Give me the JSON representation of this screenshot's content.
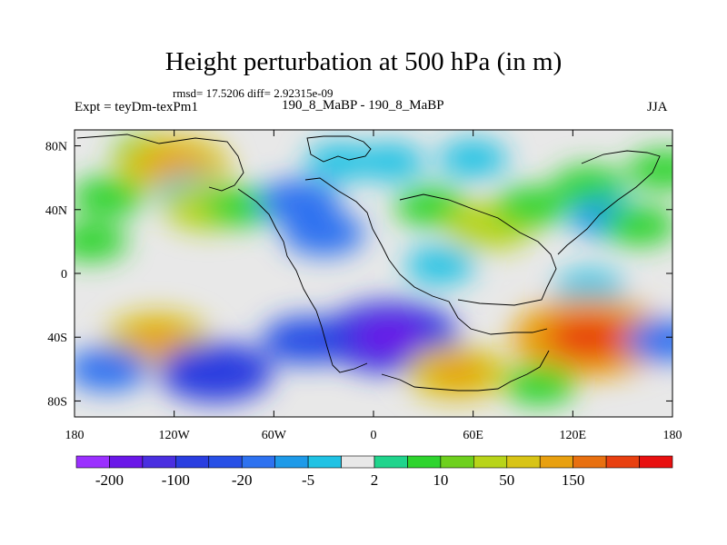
{
  "chart_data": {
    "type": "heatmap",
    "title": "Height perturbation at 500 hPa (in m)",
    "stats_text": "rmsd= 17.5206 diff= 2.92315e-09",
    "left_label": "Expt = teyDm-texPm1",
    "center_label": "190_8_MaBP - 190_8_MaBP",
    "right_label": "JJA",
    "x_ticks": [
      "180",
      "120W",
      "60W",
      "0",
      "60E",
      "120E",
      "180"
    ],
    "y_ticks": [
      "80N",
      "40N",
      "0",
      "40S",
      "80S"
    ],
    "xlim": [
      -180,
      180
    ],
    "ylim": [
      -90,
      90
    ],
    "colorbar": {
      "colors": [
        "#9b30ff",
        "#6a17e8",
        "#4a2fe0",
        "#2a3ee0",
        "#2850e6",
        "#2e72f0",
        "#1e9ae8",
        "#20c2e4",
        "#e8e8e8",
        "#20d48c",
        "#2ed42e",
        "#6ed01e",
        "#b8d41a",
        "#d8c416",
        "#e8a010",
        "#e87010",
        "#e84010",
        "#e81010"
      ],
      "labels": [
        "-200",
        "-100",
        "-20",
        "-5",
        "2",
        "10",
        "50",
        "150"
      ]
    },
    "anomalies": [
      {
        "lon": -135,
        "lat": 75,
        "value": 10
      },
      {
        "lon": -120,
        "lat": 68,
        "value": 55
      },
      {
        "lon": -160,
        "lat": 48,
        "value": 10
      },
      {
        "lon": -110,
        "lat": 50,
        "value": -5
      },
      {
        "lon": -100,
        "lat": 42,
        "value": 30
      },
      {
        "lon": -170,
        "lat": 20,
        "value": 8
      },
      {
        "lon": -80,
        "lat": 42,
        "value": 10
      },
      {
        "lon": -30,
        "lat": 25,
        "value": -20
      },
      {
        "lon": -45,
        "lat": 45,
        "value": -20
      },
      {
        "lon": -20,
        "lat": 70,
        "value": -5
      },
      {
        "lon": 10,
        "lat": 70,
        "value": -5
      },
      {
        "lon": 60,
        "lat": 72,
        "value": -5
      },
      {
        "lon": 35,
        "lat": 42,
        "value": 10
      },
      {
        "lon": 70,
        "lat": 30,
        "value": 30
      },
      {
        "lon": 95,
        "lat": 42,
        "value": 10
      },
      {
        "lon": 130,
        "lat": 55,
        "value": 10
      },
      {
        "lon": 175,
        "lat": 65,
        "value": 10
      },
      {
        "lon": 140,
        "lat": 35,
        "value": -10
      },
      {
        "lon": 160,
        "lat": 30,
        "value": 10
      },
      {
        "lon": 40,
        "lat": 5,
        "value": -5
      },
      {
        "lon": 130,
        "lat": -10,
        "value": -5
      },
      {
        "lon": -130,
        "lat": -42,
        "value": 50
      },
      {
        "lon": -40,
        "lat": -42,
        "value": -30
      },
      {
        "lon": 10,
        "lat": -40,
        "value": -90
      },
      {
        "lon": -95,
        "lat": -62,
        "value": -60
      },
      {
        "lon": -160,
        "lat": -60,
        "value": -20
      },
      {
        "lon": 50,
        "lat": -62,
        "value": 45
      },
      {
        "lon": 130,
        "lat": -40,
        "value": 110
      },
      {
        "lon": 100,
        "lat": -70,
        "value": 10
      },
      {
        "lon": 175,
        "lat": -42,
        "value": -15
      }
    ]
  }
}
